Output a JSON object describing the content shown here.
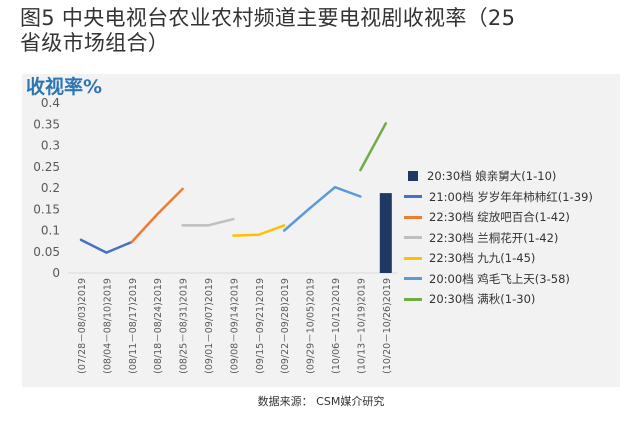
{
  "title": {
    "line1": "图5  中央电视台农业农村频道主要电视剧收视率（25",
    "line2": "省级市场组合）"
  },
  "source": "数据来源：  CSM媒介研究",
  "colors": {
    "background_panel": "#f2f2f2",
    "axis_label": "#2e75b6",
    "grid": "#d9d9d9"
  },
  "chart_data": {
    "type": "line",
    "ylabel": "收视率%",
    "ylim": [
      0,
      0.4
    ],
    "yticks": [
      "0",
      "0.05",
      "0.1",
      "0.15",
      "0.2",
      "0.25",
      "0.3",
      "0.35",
      "0.4"
    ],
    "grid": false,
    "legend_position": "right",
    "categories": [
      "(07/28－08/03)2019",
      "(08/04－08/10)2019",
      "(08/11－08/17)2019",
      "(08/18－08/24)2019",
      "(08/25－08/31)2019",
      "(09/01－09/07)2019",
      "(09/08－09/14)2019",
      "(09/15－09/21)2019",
      "(09/22－09/28)2019",
      "(09/29－10/05)2019",
      "(10/06－10/12)2019",
      "(10/13－10/19)2019",
      "(10/20－10/26)2019"
    ],
    "series": [
      {
        "name": "20:30档 娘亲舅大(1-10)",
        "kind": "bar",
        "color": "#1f3864",
        "values": [
          null,
          null,
          null,
          null,
          null,
          null,
          null,
          null,
          null,
          null,
          null,
          null,
          0.188
        ]
      },
      {
        "name": "21:00档 岁岁年年柿柿红(1-39)",
        "kind": "line",
        "color": "#4472c4",
        "values": [
          0.078,
          0.048,
          0.073,
          null,
          null,
          null,
          null,
          null,
          null,
          null,
          null,
          null,
          null
        ]
      },
      {
        "name": "22:30档 绽放吧百合(1-42)",
        "kind": "line",
        "color": "#ed7d31",
        "values": [
          null,
          null,
          0.073,
          0.138,
          0.198,
          null,
          null,
          null,
          null,
          null,
          null,
          null,
          null
        ]
      },
      {
        "name": "22:30档 兰桐花开(1-42)",
        "kind": "line",
        "color": "#bfbfbf",
        "values": [
          null,
          null,
          null,
          null,
          0.112,
          0.112,
          0.127,
          null,
          null,
          null,
          null,
          null,
          null
        ]
      },
      {
        "name": "22:30档 九九(1-45)",
        "kind": "line",
        "color": "#ffc000",
        "values": [
          null,
          null,
          null,
          null,
          null,
          null,
          0.088,
          0.09,
          0.112,
          null,
          null,
          null,
          null
        ]
      },
      {
        "name": "20:00档 鸡毛飞上天(3-58)",
        "kind": "line",
        "color": "#5b9bd5",
        "values": [
          null,
          null,
          null,
          null,
          null,
          null,
          null,
          null,
          0.1,
          0.152,
          0.202,
          0.18,
          null
        ]
      },
      {
        "name": "20:30档 满秋(1-30)",
        "kind": "line",
        "color": "#70ad47",
        "values": [
          null,
          null,
          null,
          null,
          null,
          null,
          null,
          null,
          null,
          null,
          null,
          0.242,
          0.352
        ]
      }
    ]
  }
}
